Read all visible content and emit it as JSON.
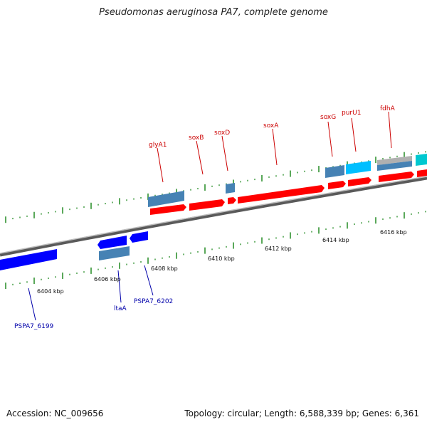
{
  "title": "Pseudomonas aeruginosa PA7, complete genome",
  "footer": {
    "accession": "Accession: NC_009656",
    "stats": "Topology: circular; Length: 6,588,339 bp; Genes: 6,361"
  },
  "colors": {
    "forward_gene": "#ff0000",
    "reverse_gene": "#0000ff",
    "cds_forward": "#4682b4",
    "cds_reverse": "#4682b4",
    "cyan_gene": "#00bfff",
    "label_forward": "#cc0000",
    "label_reverse": "#0000aa",
    "backbone": "#808080",
    "tick": "#228b22"
  },
  "scale_labels": [
    "6404 kbp",
    "6406 kbp",
    "6408 kbp",
    "6410 kbp",
    "6412 kbp",
    "6414 kbp",
    "6416 kbp"
  ],
  "forward_labels": [
    "glyA1",
    "soxB",
    "soxD",
    "soxA",
    "soxG",
    "purU1",
    "fdhA"
  ],
  "reverse_labels": [
    "PSPA7_6199",
    "ltaA",
    "PSPA7_6202"
  ]
}
